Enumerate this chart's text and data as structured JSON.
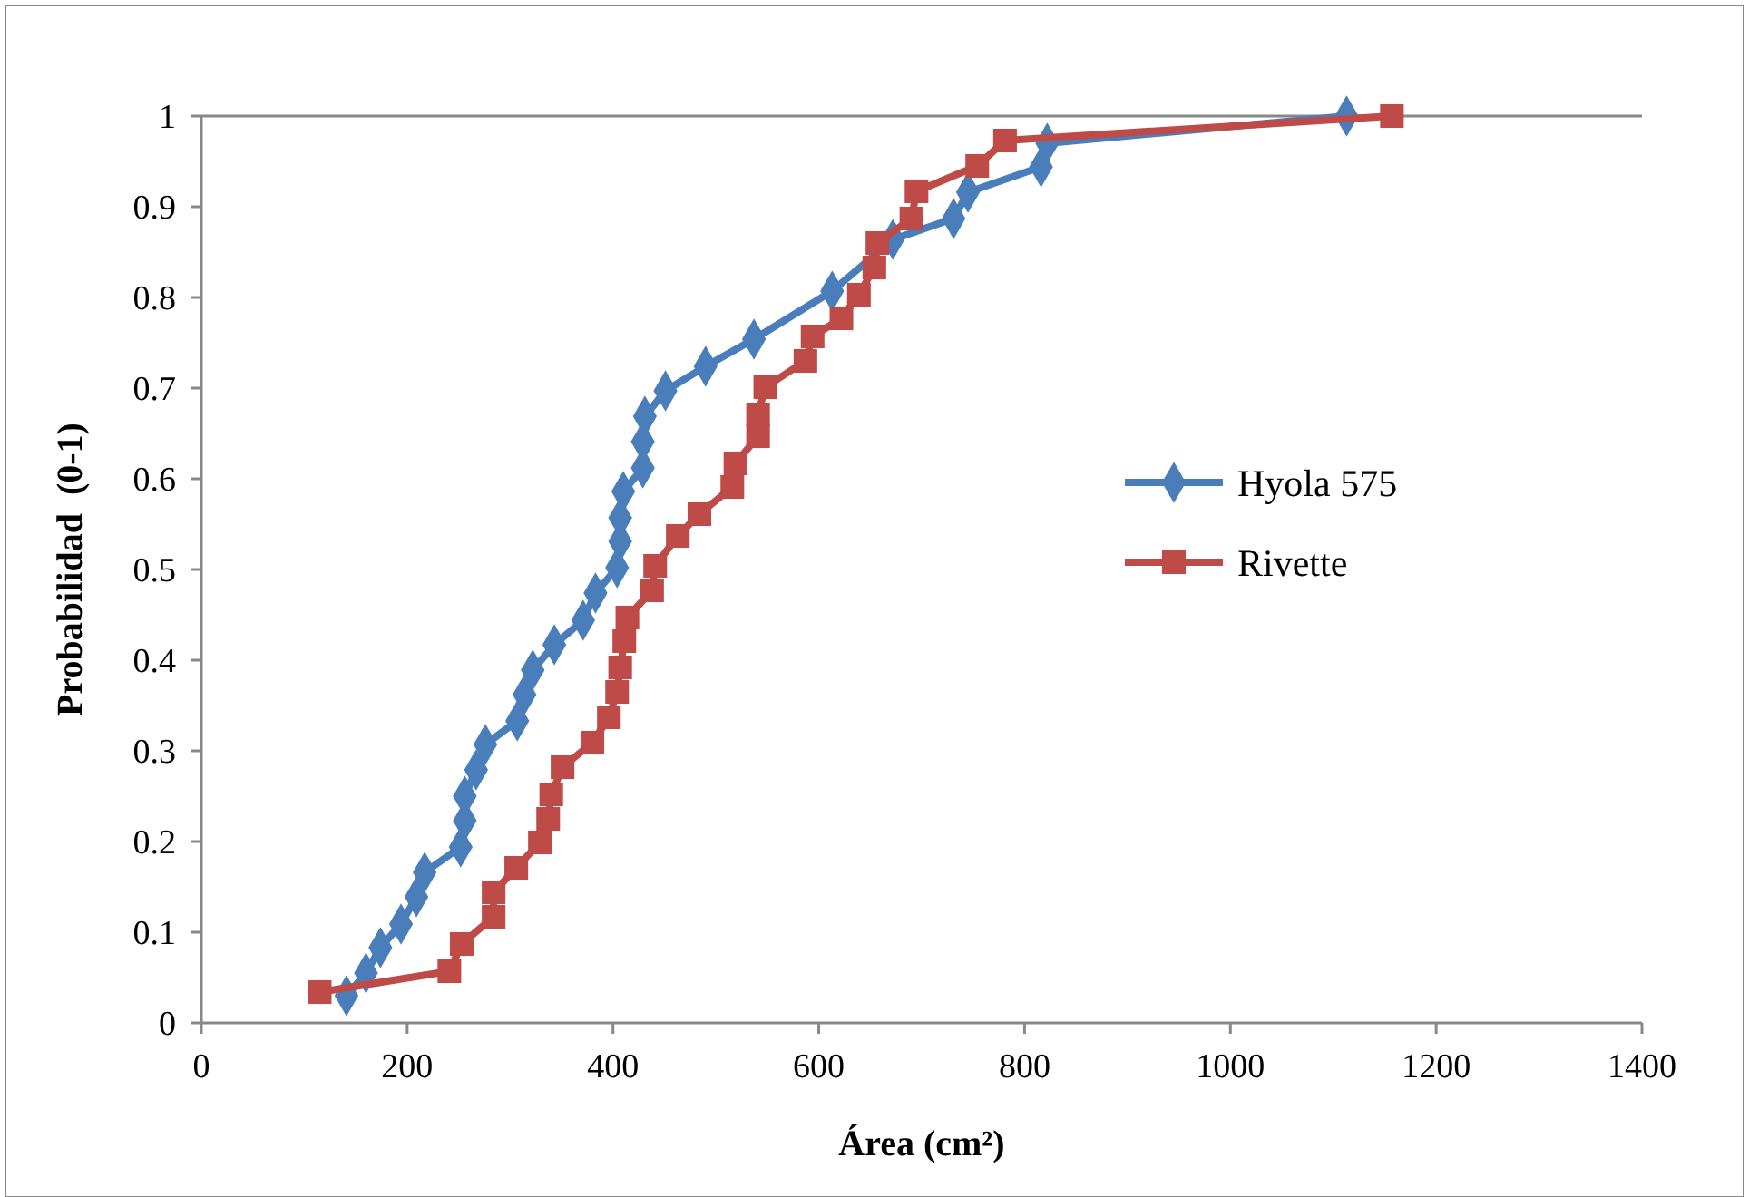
{
  "chart_data": {
    "type": "line",
    "xlabel": "Área (cm²)",
    "ylabel": "Probabilidad  (0-1)",
    "xlim": [
      0,
      1400
    ],
    "xticks": [
      0,
      200,
      400,
      600,
      800,
      1000,
      1200,
      1400
    ],
    "ylim": [
      0,
      1
    ],
    "yticks": [
      0,
      0.1,
      0.2,
      0.3,
      0.4,
      0.5,
      0.6,
      0.7,
      0.8,
      0.9,
      1
    ],
    "grid": false,
    "legend": "right",
    "line_style": "solid",
    "series": [
      {
        "name": "Hyola 575",
        "color": "#4a7ebb",
        "marker": "diamond",
        "x": [
          141,
          160,
          174,
          194,
          209,
          217,
          252,
          256,
          256,
          267,
          276,
          307,
          314,
          322,
          343,
          371,
          383,
          404,
          407,
          407,
          410,
          429,
          429,
          431,
          451,
          490,
          537,
          613,
          672,
          731,
          745,
          816,
          822,
          1113
        ],
        "values": [
          0.03,
          0.055,
          0.083,
          0.109,
          0.139,
          0.166,
          0.194,
          0.223,
          0.25,
          0.279,
          0.307,
          0.333,
          0.362,
          0.389,
          0.417,
          0.444,
          0.474,
          0.502,
          0.531,
          0.557,
          0.586,
          0.612,
          0.641,
          0.669,
          0.697,
          0.724,
          0.754,
          0.807,
          0.864,
          0.887,
          0.916,
          0.944,
          0.97,
          1.0
        ]
      },
      {
        "name": "Rivette",
        "color": "#be4b48",
        "marker": "square",
        "x": [
          115,
          241,
          253,
          284,
          284,
          306,
          329,
          337,
          340,
          351,
          380,
          396,
          404,
          407,
          411,
          414,
          438,
          441,
          463,
          484,
          516,
          519,
          541,
          541,
          548,
          587,
          594,
          622,
          639,
          654,
          657,
          690,
          695,
          754,
          781,
          1157
        ],
        "values": [
          0.034,
          0.057,
          0.087,
          0.117,
          0.144,
          0.171,
          0.199,
          0.225,
          0.252,
          0.282,
          0.309,
          0.337,
          0.365,
          0.392,
          0.421,
          0.447,
          0.477,
          0.504,
          0.537,
          0.561,
          0.591,
          0.617,
          0.647,
          0.671,
          0.701,
          0.73,
          0.757,
          0.777,
          0.803,
          0.833,
          0.86,
          0.887,
          0.917,
          0.945,
          0.973,
          1.0
        ]
      }
    ]
  }
}
